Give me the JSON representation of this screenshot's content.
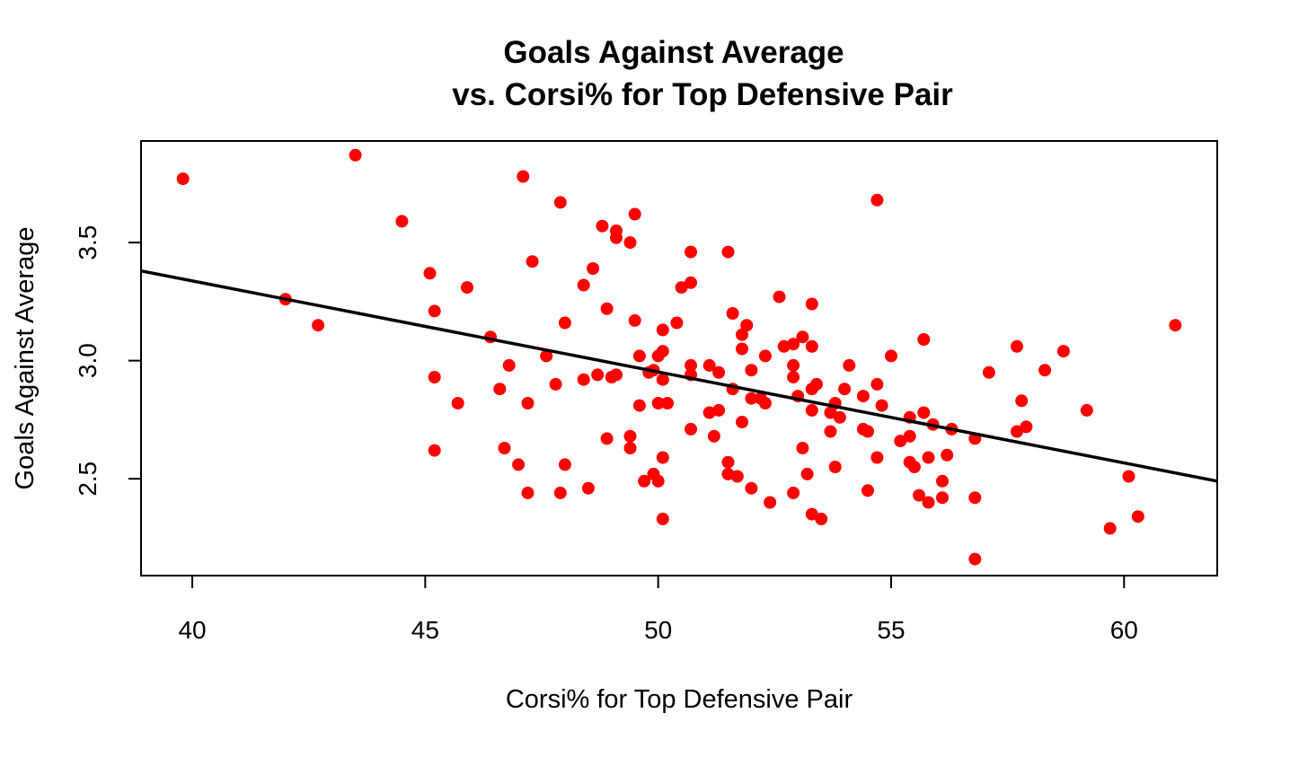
{
  "chart_data": {
    "type": "scatter",
    "title_line1": "Goals Against Average",
    "title_line2": "vs. Corsi% for Top Defensive Pair",
    "xlabel": "Corsi% for Top Defensive Pair",
    "ylabel": "Goals Against Average",
    "xlim": [
      38.9,
      62.0
    ],
    "ylim": [
      2.09,
      3.93
    ],
    "x_ticks": [
      40,
      45,
      50,
      55,
      60
    ],
    "x_tick_labels": [
      "40",
      "45",
      "50",
      "55",
      "60"
    ],
    "y_ticks": [
      2.5,
      3.0,
      3.5
    ],
    "y_tick_labels": [
      "2.5",
      "3.0",
      "3.5"
    ],
    "point_color": "#ff0000",
    "line_color": "#000000",
    "grid": false,
    "legend": "none",
    "regression_line": {
      "x": [
        38.9,
        62.0
      ],
      "y": [
        3.38,
        2.49
      ]
    },
    "points": [
      [
        39.8,
        3.77
      ],
      [
        42.0,
        3.26
      ],
      [
        42.7,
        3.15
      ],
      [
        43.5,
        3.87
      ],
      [
        44.5,
        3.59
      ],
      [
        45.1,
        3.37
      ],
      [
        45.2,
        3.21
      ],
      [
        45.2,
        2.93
      ],
      [
        45.2,
        2.62
      ],
      [
        45.7,
        2.82
      ],
      [
        45.9,
        3.31
      ],
      [
        46.4,
        3.1
      ],
      [
        46.6,
        2.88
      ],
      [
        46.7,
        2.63
      ],
      [
        46.8,
        2.98
      ],
      [
        47.0,
        2.56
      ],
      [
        47.1,
        3.78
      ],
      [
        47.2,
        2.82
      ],
      [
        47.2,
        2.44
      ],
      [
        47.3,
        3.42
      ],
      [
        47.6,
        3.02
      ],
      [
        47.8,
        2.9
      ],
      [
        47.9,
        3.67
      ],
      [
        47.9,
        2.44
      ],
      [
        48.0,
        3.16
      ],
      [
        48.0,
        2.56
      ],
      [
        48.4,
        3.32
      ],
      [
        48.4,
        2.92
      ],
      [
        48.5,
        2.46
      ],
      [
        48.6,
        3.39
      ],
      [
        48.7,
        2.94
      ],
      [
        48.8,
        3.57
      ],
      [
        48.9,
        3.22
      ],
      [
        48.9,
        2.67
      ],
      [
        49.0,
        2.93
      ],
      [
        49.1,
        3.55
      ],
      [
        49.1,
        3.52
      ],
      [
        49.1,
        2.94
      ],
      [
        49.4,
        3.5
      ],
      [
        49.4,
        2.68
      ],
      [
        49.4,
        2.63
      ],
      [
        49.5,
        3.62
      ],
      [
        49.5,
        3.17
      ],
      [
        49.6,
        3.02
      ],
      [
        49.6,
        2.81
      ],
      [
        49.7,
        2.49
      ],
      [
        49.8,
        2.95
      ],
      [
        49.9,
        2.96
      ],
      [
        49.9,
        2.52
      ],
      [
        50.0,
        3.02
      ],
      [
        50.0,
        2.82
      ],
      [
        50.0,
        2.49
      ],
      [
        50.1,
        3.13
      ],
      [
        50.1,
        3.04
      ],
      [
        50.1,
        2.92
      ],
      [
        50.1,
        2.59
      ],
      [
        50.1,
        2.33
      ],
      [
        50.2,
        2.82
      ],
      [
        50.4,
        3.16
      ],
      [
        50.5,
        3.31
      ],
      [
        50.7,
        3.46
      ],
      [
        50.7,
        3.33
      ],
      [
        50.7,
        2.98
      ],
      [
        50.7,
        2.94
      ],
      [
        50.7,
        2.71
      ],
      [
        51.1,
        2.98
      ],
      [
        51.1,
        2.78
      ],
      [
        51.2,
        2.68
      ],
      [
        51.3,
        2.95
      ],
      [
        51.3,
        2.79
      ],
      [
        51.5,
        3.46
      ],
      [
        51.5,
        2.57
      ],
      [
        51.5,
        2.52
      ],
      [
        51.6,
        3.2
      ],
      [
        51.6,
        2.88
      ],
      [
        51.7,
        2.51
      ],
      [
        51.8,
        3.11
      ],
      [
        51.8,
        3.05
      ],
      [
        51.8,
        2.74
      ],
      [
        51.9,
        3.15
      ],
      [
        52.0,
        2.96
      ],
      [
        52.0,
        2.84
      ],
      [
        52.0,
        2.46
      ],
      [
        52.2,
        2.84
      ],
      [
        52.3,
        3.02
      ],
      [
        52.3,
        2.82
      ],
      [
        52.4,
        2.4
      ],
      [
        52.6,
        3.27
      ],
      [
        52.7,
        3.06
      ],
      [
        52.9,
        3.07
      ],
      [
        52.9,
        2.98
      ],
      [
        52.9,
        2.93
      ],
      [
        52.9,
        2.44
      ],
      [
        53.0,
        2.85
      ],
      [
        53.1,
        3.1
      ],
      [
        53.1,
        2.63
      ],
      [
        53.2,
        2.52
      ],
      [
        53.3,
        3.24
      ],
      [
        53.3,
        3.06
      ],
      [
        53.3,
        2.88
      ],
      [
        53.3,
        2.79
      ],
      [
        53.3,
        2.35
      ],
      [
        53.4,
        2.9
      ],
      [
        53.5,
        2.33
      ],
      [
        53.7,
        2.78
      ],
      [
        53.7,
        2.7
      ],
      [
        53.8,
        2.82
      ],
      [
        53.8,
        2.55
      ],
      [
        53.9,
        2.76
      ],
      [
        54.0,
        2.88
      ],
      [
        54.1,
        2.98
      ],
      [
        54.4,
        2.85
      ],
      [
        54.4,
        2.71
      ],
      [
        54.5,
        2.7
      ],
      [
        54.5,
        2.45
      ],
      [
        54.7,
        3.68
      ],
      [
        54.7,
        2.9
      ],
      [
        54.7,
        2.59
      ],
      [
        54.8,
        2.81
      ],
      [
        55.0,
        3.02
      ],
      [
        55.2,
        2.66
      ],
      [
        55.4,
        2.76
      ],
      [
        55.4,
        2.68
      ],
      [
        55.4,
        2.57
      ],
      [
        55.5,
        2.55
      ],
      [
        55.6,
        2.43
      ],
      [
        55.7,
        3.09
      ],
      [
        55.7,
        2.78
      ],
      [
        55.8,
        2.59
      ],
      [
        55.8,
        2.4
      ],
      [
        55.9,
        2.73
      ],
      [
        56.1,
        2.49
      ],
      [
        56.1,
        2.42
      ],
      [
        56.2,
        2.6
      ],
      [
        56.3,
        2.71
      ],
      [
        56.8,
        2.67
      ],
      [
        56.8,
        2.42
      ],
      [
        56.8,
        2.16
      ],
      [
        57.1,
        2.95
      ],
      [
        57.7,
        3.06
      ],
      [
        57.7,
        2.7
      ],
      [
        57.8,
        2.83
      ],
      [
        57.9,
        2.72
      ],
      [
        58.3,
        2.96
      ],
      [
        58.7,
        3.04
      ],
      [
        59.2,
        2.79
      ],
      [
        59.7,
        2.29
      ],
      [
        60.1,
        2.51
      ],
      [
        60.3,
        2.34
      ],
      [
        61.1,
        3.15
      ]
    ]
  }
}
